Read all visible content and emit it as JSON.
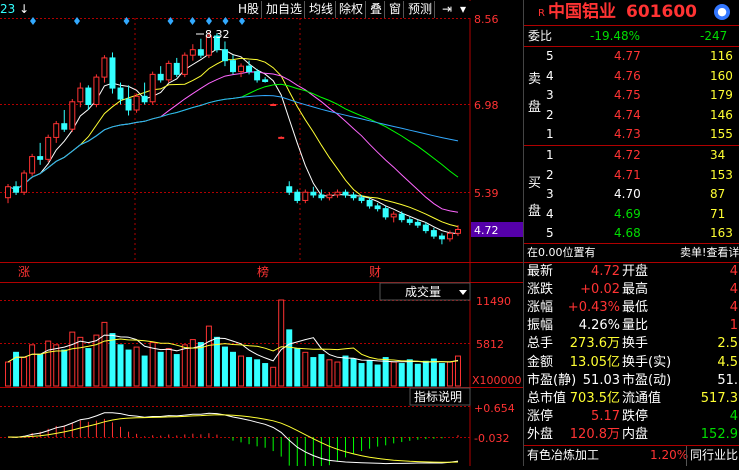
{
  "toolbar": {
    "left_value": "23",
    "buttons": [
      "H股",
      "加自选",
      "均线",
      "除权",
      "叠",
      "窗",
      "预测"
    ]
  },
  "price_axis": {
    "labels": [
      "8.56",
      "6.98",
      "5.39",
      "4.72"
    ],
    "current": "4.72"
  },
  "peak_label": "8.32",
  "event_markers": [
    "涨",
    "榜",
    "财"
  ],
  "volume_panel": {
    "selector": "成交量",
    "labels": [
      "11490",
      "5812",
      "X100000"
    ]
  },
  "indicator_panel": {
    "selector": "指标说明",
    "labels": [
      "+0.654",
      "-0.032"
    ]
  },
  "stock": {
    "r_mark": "R",
    "name": "中国铝业",
    "code": "601600"
  },
  "weibi": {
    "label": "委比",
    "value": "-19.48%",
    "diff": "-247"
  },
  "sell_side": {
    "label_chars": [
      "卖",
      "盘"
    ],
    "rows": [
      {
        "level": "5",
        "price": "4.77",
        "vol": "116"
      },
      {
        "level": "4",
        "price": "4.76",
        "vol": "160"
      },
      {
        "level": "3",
        "price": "4.75",
        "vol": "179"
      },
      {
        "level": "2",
        "price": "4.74",
        "vol": "146"
      },
      {
        "level": "1",
        "price": "4.73",
        "vol": "155"
      }
    ]
  },
  "buy_side": {
    "label_chars": [
      "买",
      "盘"
    ],
    "rows": [
      {
        "level": "1",
        "price": "4.72",
        "vol": "34"
      },
      {
        "level": "2",
        "price": "4.71",
        "vol": "153"
      },
      {
        "level": "3",
        "price": "4.70",
        "vol": "87"
      },
      {
        "level": "4",
        "price": "4.69",
        "vol": "71"
      },
      {
        "level": "5",
        "price": "4.68",
        "vol": "163"
      }
    ]
  },
  "position_bar": {
    "left": "在0.00位置有",
    "right": "卖单!查看详"
  },
  "quote": [
    {
      "l1": "最新",
      "v1": "4.72",
      "c1": "red",
      "l2": "开盘",
      "v2": "4",
      "c2": "red"
    },
    {
      "l1": "涨跌",
      "v1": "+0.02",
      "c1": "red",
      "l2": "最高",
      "v2": "4",
      "c2": "red"
    },
    {
      "l1": "涨幅",
      "v1": "+0.43%",
      "c1": "red",
      "l2": "最低",
      "v2": "4",
      "c2": "red"
    },
    {
      "l1": "振幅",
      "v1": "4.26%",
      "c1": "white",
      "l2": "量比",
      "v2": "1",
      "c2": "red"
    },
    {
      "l1": "总手",
      "v1": "273.6万",
      "c1": "yellow",
      "l2": "换手",
      "v2": "2.5",
      "c2": "yellow"
    },
    {
      "l1": "金额",
      "v1": "13.05亿",
      "c1": "yellow",
      "l2": "换手(实)",
      "v2": "4.5",
      "c2": "yellow"
    },
    {
      "l1": "市盈(静)",
      "v1": "51.03",
      "c1": "white",
      "l2": "市盈(动)",
      "v2": "51.",
      "c2": "white"
    },
    {
      "l1": "总市值",
      "v1": "703.5亿",
      "c1": "yellow",
      "l2": "流通值",
      "v2": "517.3",
      "c2": "yellow"
    },
    {
      "l1": "涨停",
      "v1": "5.17",
      "c1": "red",
      "l2": "跌停",
      "v2": "4",
      "c2": "green"
    },
    {
      "l1": "外盘",
      "v1": "120.8万",
      "c1": "red",
      "l2": "内盘",
      "v2": "152.9",
      "c2": "green"
    }
  ],
  "footer": {
    "sector": "有色冶炼加工",
    "sector_change": "1.20%",
    "compare": "同行业比较"
  },
  "colors": {
    "up": "#ff3333",
    "down": "#33ffff",
    "grid": "#b00000",
    "ma5": "#ffffff",
    "ma10": "#ffff33",
    "ma20": "#ff66ff",
    "ma30": "#00ff00",
    "ma60": "#33aaff"
  },
  "chart_data": {
    "type": "candlestick",
    "note_series": "daily OHLC estimated from the axis scale",
    "ylim": [
      4.2,
      8.56
    ],
    "candles": [
      [
        5.3,
        5.55,
        5.2,
        5.5
      ],
      [
        5.5,
        5.6,
        5.35,
        5.4
      ],
      [
        5.4,
        5.8,
        5.35,
        5.75
      ],
      [
        5.75,
        6.1,
        5.7,
        6.05
      ],
      [
        6.05,
        6.3,
        5.9,
        6.0
      ],
      [
        6.0,
        6.45,
        5.95,
        6.4
      ],
      [
        6.4,
        6.7,
        6.3,
        6.65
      ],
      [
        6.65,
        6.9,
        6.5,
        6.55
      ],
      [
        6.55,
        7.1,
        6.5,
        7.05
      ],
      [
        7.05,
        7.4,
        6.95,
        7.3
      ],
      [
        7.3,
        7.35,
        6.9,
        7.0
      ],
      [
        7.0,
        7.55,
        6.95,
        7.5
      ],
      [
        7.5,
        7.9,
        7.4,
        7.85
      ],
      [
        7.85,
        7.95,
        7.2,
        7.3
      ],
      [
        7.3,
        7.4,
        7.0,
        7.1
      ],
      [
        7.1,
        7.35,
        6.8,
        6.9
      ],
      [
        6.9,
        7.2,
        6.85,
        7.15
      ],
      [
        7.15,
        7.4,
        7.0,
        7.05
      ],
      [
        7.05,
        7.6,
        7.0,
        7.55
      ],
      [
        7.55,
        7.7,
        7.4,
        7.45
      ],
      [
        7.45,
        7.8,
        7.4,
        7.75
      ],
      [
        7.75,
        7.85,
        7.5,
        7.55
      ],
      [
        7.55,
        7.95,
        7.5,
        7.9
      ],
      [
        7.9,
        8.1,
        7.8,
        8.0
      ],
      [
        8.0,
        8.2,
        7.85,
        7.9
      ],
      [
        7.9,
        8.32,
        7.85,
        8.25
      ],
      [
        8.25,
        8.3,
        7.95,
        8.0
      ],
      [
        8.0,
        8.15,
        7.7,
        7.8
      ],
      [
        7.8,
        7.9,
        7.55,
        7.6
      ],
      [
        7.6,
        7.75,
        7.5,
        7.7
      ],
      [
        7.7,
        7.8,
        7.55,
        7.6
      ],
      [
        7.6,
        7.65,
        7.4,
        7.45
      ],
      [
        7.45,
        7.5,
        7.4,
        7.42
      ],
      [
        7.0,
        7.02,
        6.98,
        7.0
      ],
      [
        6.4,
        6.42,
        6.38,
        6.4
      ],
      [
        5.5,
        5.6,
        5.35,
        5.4
      ],
      [
        5.4,
        5.45,
        5.2,
        5.25
      ],
      [
        5.25,
        5.45,
        5.2,
        5.4
      ],
      [
        5.4,
        5.5,
        5.3,
        5.35
      ],
      [
        5.35,
        5.45,
        5.25,
        5.3
      ],
      [
        5.3,
        5.4,
        5.25,
        5.35
      ],
      [
        5.35,
        5.45,
        5.3,
        5.4
      ],
      [
        5.4,
        5.45,
        5.3,
        5.35
      ],
      [
        5.35,
        5.4,
        5.25,
        5.3
      ],
      [
        5.3,
        5.35,
        5.2,
        5.25
      ],
      [
        5.25,
        5.3,
        5.1,
        5.15
      ],
      [
        5.15,
        5.2,
        5.05,
        5.1
      ],
      [
        5.1,
        5.15,
        4.9,
        4.95
      ],
      [
        4.95,
        5.05,
        4.85,
        5.0
      ],
      [
        5.0,
        5.05,
        4.85,
        4.9
      ],
      [
        4.9,
        4.95,
        4.8,
        4.85
      ],
      [
        4.85,
        4.9,
        4.75,
        4.8
      ],
      [
        4.8,
        4.85,
        4.65,
        4.7
      ],
      [
        4.7,
        4.75,
        4.55,
        4.6
      ],
      [
        4.6,
        4.65,
        4.45,
        4.55
      ],
      [
        4.55,
        4.7,
        4.5,
        4.65
      ],
      [
        4.65,
        4.8,
        4.6,
        4.72
      ]
    ],
    "volumes": [
      3.2,
      4.5,
      3.8,
      5.5,
      4.2,
      6.0,
      5.5,
      4.8,
      7.2,
      6.5,
      5.0,
      6.8,
      8.5,
      7.0,
      5.5,
      4.8,
      5.2,
      4.0,
      5.8,
      4.5,
      5.0,
      4.2,
      5.5,
      6.2,
      5.8,
      8.0,
      6.5,
      5.2,
      4.5,
      4.0,
      3.8,
      3.5,
      3.0,
      2.5,
      11.49,
      7.5,
      5.0,
      4.5,
      3.8,
      4.2,
      3.5,
      3.2,
      4.0,
      3.6,
      3.0,
      3.4,
      2.8,
      3.8,
      3.2,
      3.0,
      3.5,
      2.9,
      3.3,
      3.6,
      3.0,
      3.2,
      4.0
    ],
    "volume_axis": [
      0,
      11490
    ],
    "indicator_range": [
      -0.5,
      0.654
    ]
  }
}
